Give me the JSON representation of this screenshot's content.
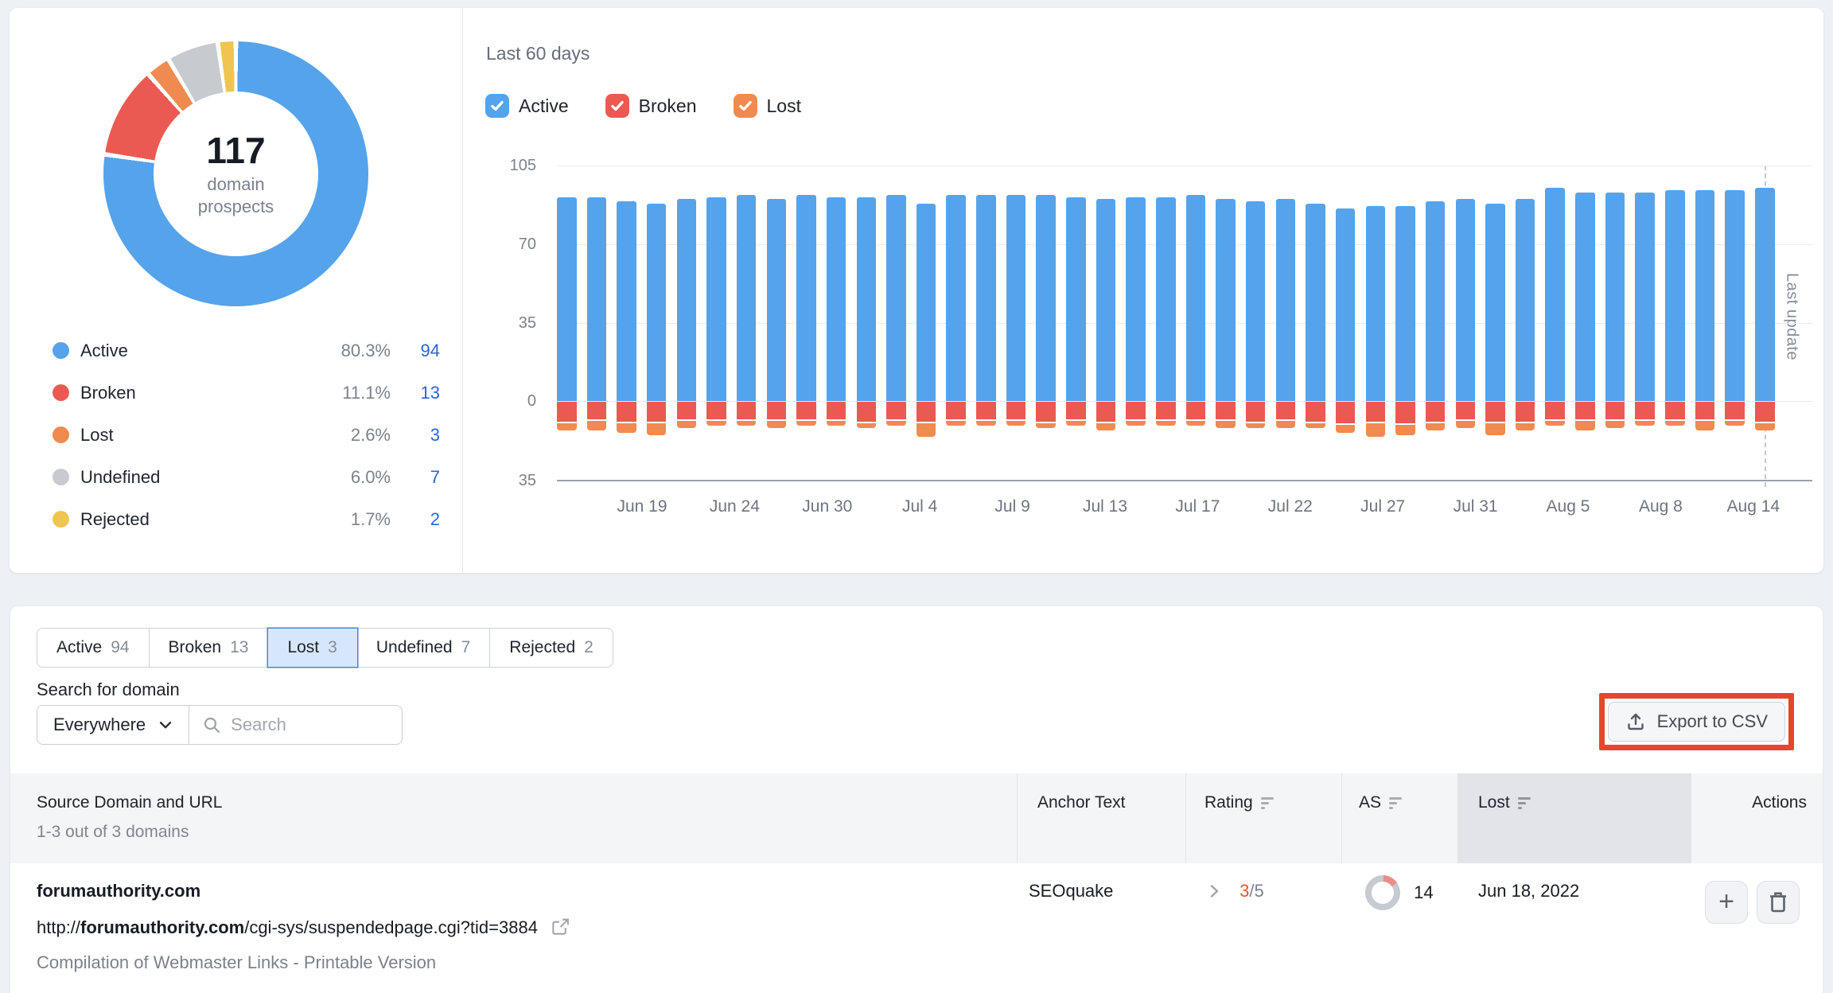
{
  "donut_panel": {
    "center_value": "117",
    "center_label": "domain prospects",
    "legend": [
      {
        "label": "Active",
        "pct": "80.3%",
        "count": "94",
        "value": 94,
        "color": "#55a3ea"
      },
      {
        "label": "Broken",
        "pct": "11.1%",
        "count": "13",
        "value": 13,
        "color": "#ea5a52"
      },
      {
        "label": "Lost",
        "pct": "2.6%",
        "count": "3",
        "value": 3,
        "color": "#ef8b50"
      },
      {
        "label": "Undefined",
        "pct": "6.0%",
        "count": "7",
        "value": 7,
        "color": "#c7cacf"
      },
      {
        "label": "Rejected",
        "pct": "1.7%",
        "count": "2",
        "value": 2,
        "color": "#f0c451"
      }
    ]
  },
  "chart_panel": {
    "title": "Last 60 days",
    "filters": [
      {
        "label": "Active",
        "color": "#55a3ea",
        "checked": true
      },
      {
        "label": "Broken",
        "color": "#ea5a52",
        "checked": true
      },
      {
        "label": "Lost",
        "color": "#ef8b50",
        "checked": true
      }
    ],
    "last_update_label": "Last update"
  },
  "chart_data": {
    "type": "bar",
    "stacked": true,
    "title": "Last 60 days",
    "x_tick_labels": [
      "Jun 19",
      "Jun 24",
      "Jun 30",
      "Jul 4",
      "Jul 9",
      "Jul 13",
      "Jul 17",
      "Jul 22",
      "Jul 27",
      "Jul 31",
      "Aug 5",
      "Aug 8",
      "Aug 14"
    ],
    "y_ticks": [
      105,
      70,
      35,
      0,
      -35
    ],
    "ylim": [
      -35,
      105
    ],
    "grid": true,
    "series": [
      {
        "name": "Active",
        "color": "#55a3ea",
        "direction": "up",
        "values": [
          91,
          91,
          89,
          88,
          90,
          91,
          92,
          90,
          92,
          91,
          91,
          92,
          88,
          92,
          92,
          92,
          92,
          91,
          90,
          91,
          91,
          92,
          90,
          89,
          90,
          88,
          86,
          87,
          87,
          89,
          90,
          88,
          90,
          95,
          93,
          93,
          93,
          94,
          94,
          94,
          95
        ]
      },
      {
        "name": "Broken",
        "color": "#ea5a52",
        "direction": "down",
        "values": [
          9,
          8,
          9,
          9,
          8,
          8,
          8,
          8,
          8,
          8,
          9,
          8,
          9,
          8,
          8,
          8,
          9,
          8,
          9,
          8,
          8,
          8,
          8,
          9,
          8,
          9,
          10,
          9,
          10,
          9,
          8,
          9,
          9,
          8,
          8,
          8,
          8,
          8,
          8,
          8,
          9
        ]
      },
      {
        "name": "Lost",
        "color": "#ef8b50",
        "direction": "down",
        "values": [
          4,
          5,
          5,
          6,
          4,
          3,
          3,
          4,
          3,
          3,
          3,
          3,
          7,
          3,
          3,
          3,
          3,
          3,
          4,
          3,
          3,
          3,
          4,
          3,
          4,
          3,
          4,
          7,
          5,
          4,
          4,
          6,
          4,
          3,
          5,
          4,
          3,
          3,
          5,
          3,
          4
        ]
      }
    ]
  },
  "tabs": [
    {
      "label": "Active",
      "count": "94",
      "selected": false
    },
    {
      "label": "Broken",
      "count": "13",
      "selected": false
    },
    {
      "label": "Lost",
      "count": "3",
      "selected": true
    },
    {
      "label": "Undefined",
      "count": "7",
      "selected": false
    },
    {
      "label": "Rejected",
      "count": "2",
      "selected": false
    }
  ],
  "search": {
    "label": "Search for domain",
    "scope_value": "Everywhere",
    "placeholder": "Search"
  },
  "export_button": {
    "label": "Export to CSV",
    "highlight_color": "#e84627"
  },
  "table": {
    "header": {
      "source": "Source Domain and URL",
      "source_sub": "1-3 out of 3 domains",
      "anchor": "Anchor Text",
      "rating": "Rating",
      "authority": "AS",
      "lost": "Lost",
      "actions": "Actions"
    },
    "rows": [
      {
        "domain": "forumauthority.com",
        "url_prefix": "http://",
        "url_domain": "forumauthority.com",
        "url_path": "/cgi-sys/suspendedpage.cgi?tid=3884",
        "title": "Compilation of Webmaster Links - Printable Version",
        "anchor": "SEOquake",
        "rating_value": "3",
        "rating_max": "/5",
        "as_value": "14",
        "lost_date": "Jun 18, 2022",
        "add_label": "+"
      }
    ]
  }
}
